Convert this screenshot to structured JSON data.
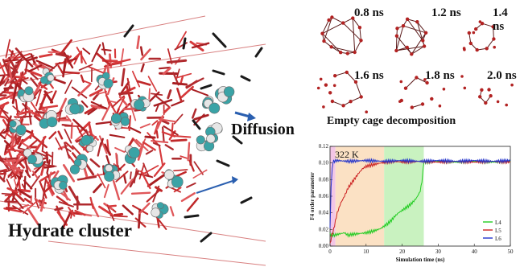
{
  "labels": {
    "diffusion": "Diffusion",
    "hydrate_cluster": "Hydrate cluster",
    "empty_cage": "Empty cage decomposition"
  },
  "cage_times": [
    "0.8 ns",
    "1.2 ns",
    "1.4 ns",
    "1.6 ns",
    "1.8 ns",
    "2.0 ns"
  ],
  "chart_data": {
    "type": "line",
    "title": "",
    "annotation": "322 K",
    "xlabel": "Simulation time (ns)",
    "ylabel": "F4 order parameter",
    "xlim": [
      0,
      50
    ],
    "ylim": [
      0,
      0.12
    ],
    "x_ticks": [
      0,
      10,
      20,
      30,
      40,
      50
    ],
    "y_ticks": [
      0.0,
      0.02,
      0.04,
      0.06,
      0.08,
      0.1,
      0.12
    ],
    "y_tick_labels": [
      "0.00",
      "0.02",
      "0.04",
      "0.06",
      "0.08",
      "0.10",
      "0.12"
    ],
    "shaded_regions": [
      {
        "x0": 0,
        "x1": 1.5,
        "color": "#f3c6e6"
      },
      {
        "x0": 1.5,
        "x1": 15,
        "color": "#fbe1c4"
      },
      {
        "x0": 15,
        "x1": 26,
        "color": "#c9f2c0"
      }
    ],
    "series": [
      {
        "name": "L4",
        "color": "#22cc22",
        "x": [
          0,
          1,
          2,
          3,
          4,
          5,
          6,
          8,
          10,
          12,
          14,
          16,
          17,
          18,
          19,
          20,
          21,
          22,
          23,
          24,
          25,
          25.5,
          26,
          27,
          30,
          35,
          40,
          45,
          50
        ],
        "y": [
          0.014,
          0.013,
          0.014,
          0.015,
          0.016,
          0.013,
          0.014,
          0.015,
          0.016,
          0.018,
          0.021,
          0.027,
          0.031,
          0.036,
          0.04,
          0.043,
          0.046,
          0.049,
          0.053,
          0.058,
          0.066,
          0.078,
          0.101,
          0.101,
          0.102,
          0.101,
          0.102,
          0.101,
          0.102
        ]
      },
      {
        "name": "L5",
        "color": "#cc2222",
        "x": [
          0,
          0.5,
          1,
          1.5,
          2,
          3,
          4,
          5,
          6,
          7,
          8,
          9,
          10,
          12,
          14,
          16,
          18,
          20,
          25,
          30,
          35,
          40,
          45,
          50
        ],
        "y": [
          0.002,
          0.013,
          0.02,
          0.03,
          0.04,
          0.052,
          0.06,
          0.07,
          0.076,
          0.082,
          0.088,
          0.093,
          0.096,
          0.098,
          0.1,
          0.101,
          0.102,
          0.101,
          0.102,
          0.101,
          0.102,
          0.101,
          0.102,
          0.101
        ]
      },
      {
        "name": "L6",
        "color": "#2233cc",
        "x": [
          0,
          0.3,
          0.6,
          1,
          2,
          5,
          10,
          15,
          20,
          25,
          30,
          35,
          40,
          45,
          50
        ],
        "y": [
          0.02,
          0.07,
          0.095,
          0.102,
          0.103,
          0.102,
          0.103,
          0.102,
          0.103,
          0.102,
          0.103,
          0.102,
          0.103,
          0.102,
          0.103
        ]
      }
    ],
    "legend": {
      "position": "bottom-right",
      "entries": [
        "L4",
        "L5",
        "L6"
      ]
    },
    "grid": false
  }
}
